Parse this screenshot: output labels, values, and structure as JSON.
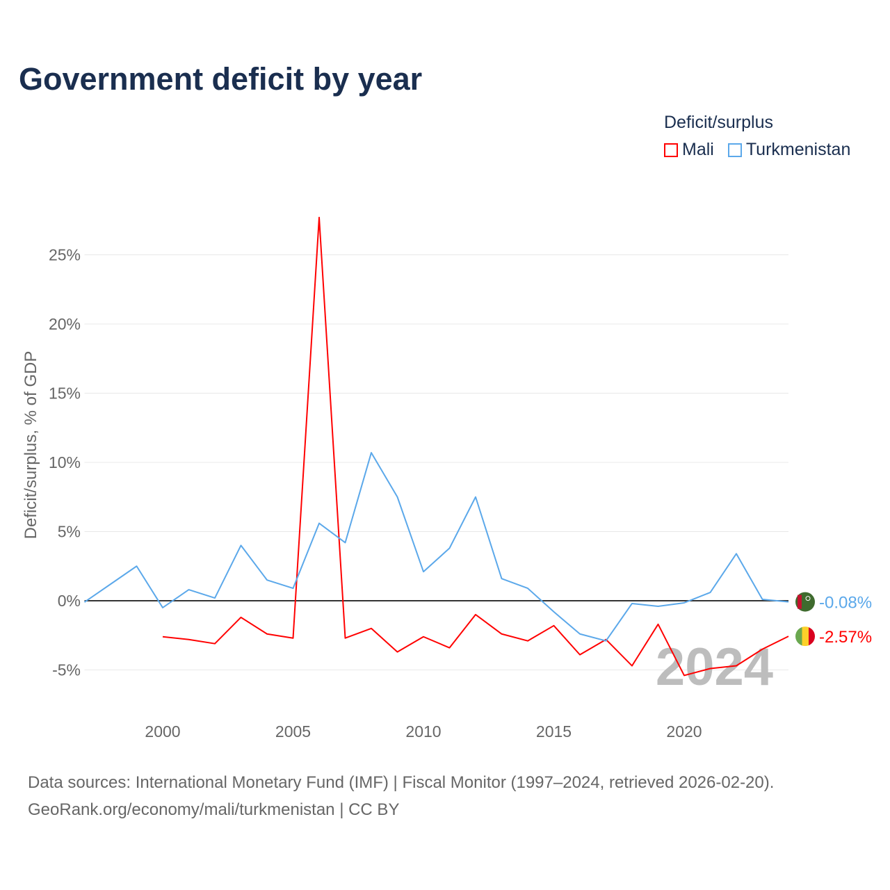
{
  "chart_data": {
    "type": "line",
    "title": "Government deficit by year",
    "ylabel": "Deficit/surplus, % of GDP",
    "xlabel": "",
    "xlim": [
      1997,
      2024
    ],
    "ylim": [
      -8.5,
      29
    ],
    "x_ticks": [
      2000,
      2005,
      2010,
      2015,
      2020
    ],
    "x_tick_labels": [
      "2000",
      "2005",
      "2010",
      "2015",
      "2020"
    ],
    "y_ticks": [
      -5,
      0,
      5,
      10,
      15,
      20,
      25
    ],
    "y_tick_labels": [
      "-5%",
      "0%",
      "5%",
      "10%",
      "15%",
      "20%",
      "25%"
    ],
    "grid": true,
    "legend": {
      "title": "Deficit/surplus",
      "placement": "top-right"
    },
    "watermark_year": "2024",
    "series": [
      {
        "name": "Mali",
        "color": "#ff0000",
        "end_label": "-2.57%",
        "flag": "mali-flag",
        "x": [
          2000,
          2001,
          2002,
          2003,
          2004,
          2005,
          2006,
          2007,
          2008,
          2009,
          2010,
          2011,
          2012,
          2013,
          2014,
          2015,
          2016,
          2017,
          2018,
          2019,
          2020,
          2021,
          2022,
          2023,
          2024
        ],
        "values": [
          -2.6,
          -2.8,
          -3.1,
          -1.2,
          -2.4,
          -2.7,
          27.7,
          -2.7,
          -2.0,
          -3.7,
          -2.6,
          -3.4,
          -1.0,
          -2.4,
          -2.9,
          -1.8,
          -3.9,
          -2.8,
          -4.7,
          -1.7,
          -5.4,
          -4.9,
          -4.7,
          -3.5,
          -2.57
        ]
      },
      {
        "name": "Turkmenistan",
        "color": "#5ba8ea",
        "end_label": "-0.08%",
        "flag": "turkmenistan-flag",
        "x": [
          1997,
          1998,
          1999,
          2000,
          2001,
          2002,
          2003,
          2004,
          2005,
          2006,
          2007,
          2008,
          2009,
          2010,
          2011,
          2012,
          2013,
          2014,
          2015,
          2016,
          2017,
          2018,
          2019,
          2020,
          2021,
          2022,
          2023,
          2024
        ],
        "values": [
          -0.1,
          1.2,
          2.5,
          -0.5,
          0.8,
          0.2,
          4.0,
          1.5,
          0.9,
          5.6,
          4.2,
          10.7,
          7.5,
          2.1,
          3.8,
          7.5,
          1.6,
          0.9,
          -0.8,
          -2.4,
          -2.9,
          -0.2,
          -0.4,
          -0.15,
          0.6,
          3.4,
          0.1,
          -0.08
        ]
      }
    ]
  },
  "footer": {
    "line1": "Data sources: International Monetary Fund (IMF) | Fiscal Monitor (1997–2024, retrieved 2026-02-20).",
    "line2": "GeoRank.org/economy/mali/turkmenistan | CC BY"
  }
}
